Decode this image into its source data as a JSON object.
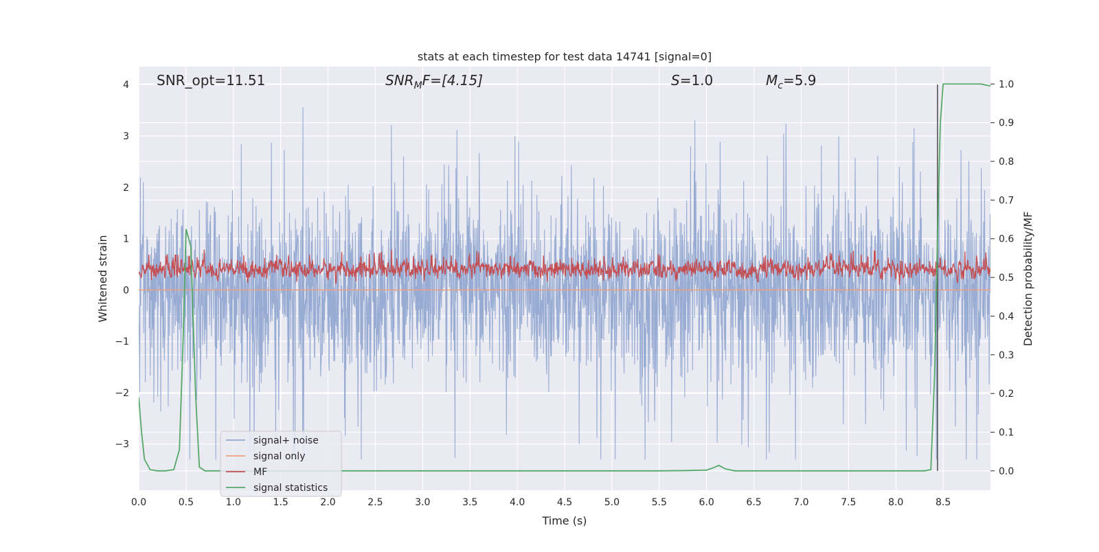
{
  "chart_data": {
    "type": "line",
    "title": "stats at each timestep for test data 14741 [signal=0]",
    "xlabel": "Time (s)",
    "ylabel": "Whitened strain",
    "ylabel_right": "Detection probability/MF",
    "xlim": [
      0,
      9.0
    ],
    "ylim": [
      -3.9,
      4.35
    ],
    "ylim_right": [
      -0.05,
      1.045
    ],
    "grid": true,
    "x_ticks": [
      "0.0",
      "0.5",
      "1.0",
      "1.5",
      "2.0",
      "2.5",
      "3.0",
      "3.5",
      "4.0",
      "4.5",
      "5.0",
      "5.5",
      "6.0",
      "6.5",
      "7.0",
      "7.5",
      "8.0",
      "8.5"
    ],
    "y_ticks": [
      "−3",
      "−2",
      "−1",
      "0",
      "1",
      "2",
      "3",
      "4"
    ],
    "y_ticks_right": [
      "0.0",
      "0.1",
      "0.2",
      "0.3",
      "0.4",
      "0.5",
      "0.6",
      "0.7",
      "0.8",
      "0.9",
      "1.0"
    ],
    "annotations": {
      "snr_opt": "SNR_opt=11.51",
      "snr_mf_main": "SNR",
      "snr_mf_sub": "M",
      "snr_mf_rest": "F=[4.15]",
      "s_main": "S",
      "s_rest": "=1.0",
      "mc_main": "M",
      "mc_sub": "c",
      "mc_rest": "=5.9"
    },
    "vline_x": 8.44,
    "legend": {
      "placement": "lower-left",
      "entries": [
        "signal+ noise",
        "signal only",
        "MF",
        "signal statistics"
      ]
    },
    "series": [
      {
        "name": "signal+ noise",
        "axis": "left",
        "color": "#92a8d1",
        "envelope": {
          "min": -3.3,
          "max": 4.0,
          "typical_range": [
            -1.3,
            1.7
          ]
        }
      },
      {
        "name": "signal only",
        "axis": "left",
        "color": "#f0a07c",
        "values": [
          0
        ]
      },
      {
        "name": "MF",
        "axis": "right",
        "color": "#c44e52",
        "envelope": {
          "min": 0.48,
          "max": 0.6,
          "typical_range": [
            0.49,
            0.56
          ]
        }
      },
      {
        "name": "signal statistics",
        "axis": "right",
        "color": "#55a868",
        "x": [
          0.0,
          0.03,
          0.06,
          0.12,
          0.2,
          0.28,
          0.37,
          0.43,
          0.47,
          0.5,
          0.55,
          0.6,
          0.64,
          0.7,
          1.0,
          2.0,
          3.0,
          4.0,
          5.0,
          5.5,
          5.8,
          6.0,
          6.06,
          6.13,
          6.2,
          6.3,
          7.0,
          7.5,
          8.0,
          8.3,
          8.37,
          8.41,
          8.44,
          8.47,
          8.5,
          8.6,
          8.75,
          8.9,
          9.0
        ],
        "values": [
          0.19,
          0.1,
          0.03,
          0.003,
          0.0,
          0.0,
          0.003,
          0.055,
          0.35,
          0.625,
          0.58,
          0.2,
          0.01,
          0.0,
          0.0,
          0.0,
          0.0,
          0.0,
          0.0,
          0.0,
          0.001,
          0.002,
          0.007,
          0.014,
          0.005,
          0.0,
          0.0,
          0.0,
          0.0,
          0.0,
          0.003,
          0.25,
          0.6,
          0.9,
          1.0,
          1.0,
          1.0,
          1.0,
          0.995
        ]
      }
    ]
  }
}
